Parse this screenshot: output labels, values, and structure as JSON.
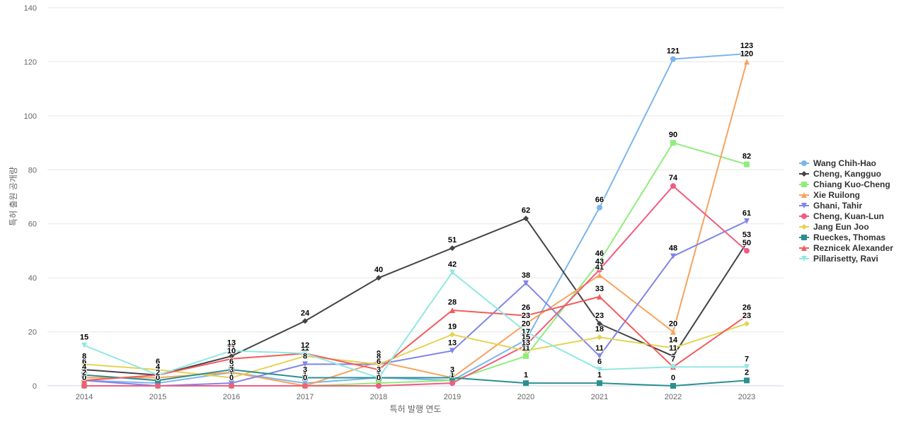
{
  "chart_data": {
    "type": "line",
    "x_label": "특허 발행 연도",
    "y_label": "특허 출원 공개량",
    "categories": [
      "2014",
      "2015",
      "2016",
      "2017",
      "2018",
      "2019",
      "2020",
      "2021",
      "2022",
      "2023"
    ],
    "ylim": [
      0,
      140
    ],
    "yticks": [
      0,
      20,
      40,
      60,
      80,
      100,
      120,
      140
    ],
    "grid": true,
    "legend": "right",
    "series": [
      {
        "name": "Wang Chih-Hao",
        "color": "#7cb5ec",
        "symbol": "circle",
        "values": [
          2,
          1,
          5,
          1,
          3,
          2,
          17,
          66,
          121,
          123
        ]
      },
      {
        "name": "Cheng, Kangguo",
        "color": "#434348",
        "symbol": "diamond",
        "values": [
          6,
          4,
          11,
          24,
          40,
          51,
          62,
          23,
          11,
          53
        ]
      },
      {
        "name": "Chiang Kuo-Cheng",
        "color": "#90ed7d",
        "symbol": "square",
        "values": [
          0,
          0,
          0,
          0,
          1,
          2,
          11,
          46,
          90,
          82
        ]
      },
      {
        "name": "Xie Ruilong",
        "color": "#f7a35c",
        "symbol": "triangle",
        "values": [
          3,
          3,
          5,
          0,
          9,
          3,
          23,
          41,
          20,
          120
        ]
      },
      {
        "name": "Ghani, Tahir",
        "color": "#8085e9",
        "symbol": "triangle-down",
        "values": [
          2,
          0,
          1,
          8,
          8,
          13,
          38,
          11,
          48,
          61
        ]
      },
      {
        "name": "Cheng, Kuan-Lun",
        "color": "#f15c80",
        "symbol": "circle",
        "values": [
          0,
          0,
          0,
          0,
          0,
          1,
          15,
          43,
          74,
          50
        ]
      },
      {
        "name": "Jang Eun Joo",
        "color": "#e4d354",
        "symbol": "diamond",
        "values": [
          8,
          6,
          3,
          11,
          8,
          19,
          13,
          18,
          14,
          23
        ]
      },
      {
        "name": "Rueckes, Thomas",
        "color": "#2b908f",
        "symbol": "square",
        "values": [
          4,
          2,
          6,
          3,
          3,
          3,
          1,
          1,
          0,
          2
        ]
      },
      {
        "name": "Reznicek Alexander",
        "color": "#f45b5b",
        "symbol": "triangle",
        "values": [
          2,
          4,
          10,
          12,
          6,
          28,
          26,
          33,
          7,
          26
        ]
      },
      {
        "name": "Pillarisetty, Ravi",
        "color": "#91e8e1",
        "symbol": "triangle-down",
        "values": [
          15,
          4,
          13,
          12,
          3,
          42,
          20,
          6,
          7,
          7
        ]
      }
    ]
  }
}
